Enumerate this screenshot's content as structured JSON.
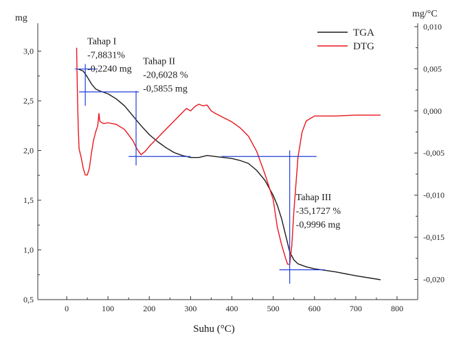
{
  "chart_data": {
    "type": "line",
    "xlabel": "Suhu (°C)",
    "y_left_unit": "mg",
    "y_right_unit": "mg/°C",
    "xlim": [
      -70,
      850
    ],
    "ylim_left": [
      0.5,
      3.28
    ],
    "ylim_right": [
      -0.0224,
      0.0104
    ],
    "x_ticks": [
      0,
      100,
      200,
      300,
      400,
      500,
      600,
      700,
      800
    ],
    "x_tick_labels": [
      "0",
      "100",
      "200",
      "300",
      "400",
      "500",
      "600",
      "700",
      "800"
    ],
    "y_left_ticks": [
      0.5,
      1.0,
      1.5,
      2.0,
      2.5,
      3.0
    ],
    "y_left_tick_labels": [
      "0,5",
      "1,0",
      "1,5",
      "2,0",
      "2,5",
      "3,0"
    ],
    "y_right_ticks": [
      -0.02,
      -0.015,
      -0.01,
      -0.005,
      0.0,
      0.005,
      0.01
    ],
    "y_right_tick_labels": [
      "-0,020",
      "-0,015",
      "-0,010",
      "-0,005",
      "0,000",
      "0,005",
      "0,010"
    ],
    "legend": {
      "placement": "top-right",
      "entries": [
        {
          "label": "TGA",
          "color": "#1a1a1a"
        },
        {
          "label": "DTG",
          "color": "#e8141b"
        }
      ]
    },
    "series": [
      {
        "name": "TGA",
        "axis": "left",
        "color": "#1a1a1a",
        "x": [
          28,
          40,
          50,
          60,
          70,
          80,
          100,
          120,
          140,
          160,
          180,
          200,
          220,
          240,
          260,
          280,
          300,
          320,
          340,
          360,
          380,
          400,
          420,
          440,
          460,
          480,
          500,
          510,
          520,
          530,
          540,
          550,
          560,
          580,
          600,
          650,
          700,
          760
        ],
        "y": [
          2.82,
          2.8,
          2.74,
          2.67,
          2.62,
          2.6,
          2.57,
          2.52,
          2.45,
          2.35,
          2.25,
          2.16,
          2.09,
          2.03,
          1.98,
          1.95,
          1.93,
          1.93,
          1.95,
          1.94,
          1.93,
          1.92,
          1.9,
          1.87,
          1.8,
          1.7,
          1.55,
          1.45,
          1.32,
          1.15,
          0.98,
          0.9,
          0.86,
          0.83,
          0.81,
          0.78,
          0.74,
          0.7
        ]
      },
      {
        "name": "DTG",
        "axis": "right",
        "color": "#e8141b",
        "x": [
          24,
          26,
          28,
          30,
          35,
          40,
          45,
          50,
          55,
          60,
          65,
          70,
          75,
          78,
          80,
          85,
          90,
          100,
          120,
          140,
          160,
          170,
          180,
          190,
          200,
          220,
          240,
          260,
          280,
          290,
          300,
          310,
          320,
          330,
          340,
          350,
          360,
          380,
          400,
          420,
          440,
          460,
          480,
          500,
          510,
          520,
          530,
          535,
          540,
          545,
          550,
          560,
          570,
          580,
          600,
          650,
          700,
          760
        ],
        "y": [
          0.0075,
          0.002,
          -0.002,
          -0.0045,
          -0.0055,
          -0.0068,
          -0.0076,
          -0.0076,
          -0.0068,
          -0.005,
          -0.0035,
          -0.0025,
          -0.0018,
          -0.0003,
          -0.0012,
          -0.0014,
          -0.0015,
          -0.0014,
          -0.0016,
          -0.0022,
          -0.0035,
          -0.0045,
          -0.0052,
          -0.0048,
          -0.0042,
          -0.0032,
          -0.0022,
          -0.0012,
          -0.0002,
          0.0003,
          0.0,
          0.0005,
          0.0008,
          0.0006,
          0.0007,
          0.0,
          -0.0003,
          -0.0008,
          -0.0013,
          -0.002,
          -0.003,
          -0.0048,
          -0.0075,
          -0.0105,
          -0.0138,
          -0.0158,
          -0.0175,
          -0.0182,
          -0.0182,
          -0.016,
          -0.012,
          -0.0055,
          -0.0025,
          -0.0012,
          -0.0006,
          -0.0006,
          -0.0005,
          -0.0005
        ]
      }
    ],
    "guide_color": "#1f3bd9",
    "guides": [
      {
        "type": "h",
        "axis": "left",
        "y": 2.82,
        "x0": 20,
        "x1": 75
      },
      {
        "type": "h",
        "axis": "left",
        "y": 2.59,
        "x0": 30,
        "x1": 175
      },
      {
        "type": "v",
        "axis": "left",
        "x": 45,
        "y0": 2.45,
        "y1": 2.87
      },
      {
        "type": "h",
        "axis": "left",
        "y": 1.94,
        "x0": 150,
        "x1": 300
      },
      {
        "type": "h",
        "axis": "left",
        "y": 1.94,
        "x0": 375,
        "x1": 605
      },
      {
        "type": "v",
        "axis": "left",
        "x": 168,
        "y0": 1.85,
        "y1": 2.6
      },
      {
        "type": "v",
        "axis": "left",
        "x": 540,
        "y0": 0.66,
        "y1": 2.0
      },
      {
        "type": "h",
        "axis": "left",
        "y": 0.8,
        "x0": 515,
        "x1": 625
      }
    ],
    "annotations": [
      {
        "lines": [
          "Tahap I",
          "-7,8831%",
          "-0,2240 mg"
        ],
        "x": 50,
        "y": 3.07
      },
      {
        "lines": [
          "Tahap II",
          "-20,6028 %",
          "-0,5855 mg"
        ],
        "x": 185,
        "y": 2.87
      },
      {
        "lines": [
          "Tahap III",
          "-35,1727 %",
          "-0,9996 mg"
        ],
        "x": 555,
        "y": 1.5
      }
    ]
  }
}
